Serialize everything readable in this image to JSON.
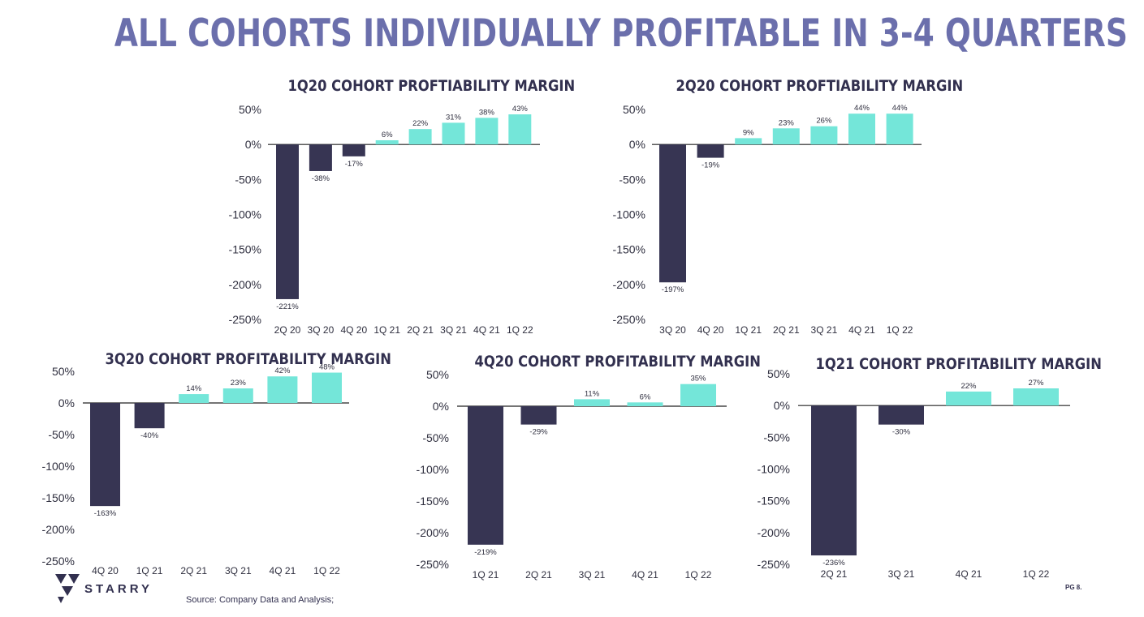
{
  "title": "ALL COHORTS INDIVIDUALLY PROFITABLE IN 3-4 QUARTERS",
  "colors": {
    "negative": "#373553",
    "positive": "#74e6d9",
    "title": "#6b6fac",
    "dark": "#32304f"
  },
  "footer": {
    "brand": "STARRY",
    "source": "Source: Company Data and Analysis;",
    "page": "PG 8."
  },
  "chart_data": [
    {
      "type": "bar",
      "title": "1Q20 COHORT PROFTIABILITY MARGIN",
      "categories": [
        "2Q 20",
        "3Q 20",
        "4Q 20",
        "1Q 21",
        "2Q 21",
        "3Q 21",
        "4Q 21",
        "1Q 22"
      ],
      "values": [
        -221,
        -38,
        -17,
        6,
        22,
        31,
        38,
        43
      ],
      "value_labels": [
        "-221%",
        "-38%",
        "-17%",
        "6%",
        "22%",
        "31%",
        "38%",
        "43%"
      ],
      "ylim": [
        -250,
        50
      ],
      "yticks": [
        50,
        0,
        -50,
        -100,
        -150,
        -200,
        -250
      ],
      "ytick_labels": [
        "50%",
        "0%",
        "-50%",
        "-100%",
        "-150%",
        "-200%",
        "-250%"
      ],
      "grid": false,
      "legend": "none"
    },
    {
      "type": "bar",
      "title": "2Q20 COHORT PROFTIABILITY MARGIN",
      "categories": [
        "3Q 20",
        "4Q 20",
        "1Q 21",
        "2Q 21",
        "3Q 21",
        "4Q 21",
        "1Q 22"
      ],
      "values": [
        -197,
        -19,
        9,
        23,
        26,
        44,
        44
      ],
      "value_labels": [
        "-197%",
        "-19%",
        "9%",
        "23%",
        "26%",
        "44%",
        "44%"
      ],
      "ylim": [
        -250,
        50
      ],
      "yticks": [
        50,
        0,
        -50,
        -100,
        -150,
        -200,
        -250
      ],
      "ytick_labels": [
        "50%",
        "0%",
        "-50%",
        "-100%",
        "-150%",
        "-200%",
        "-250%"
      ],
      "grid": false,
      "legend": "none"
    },
    {
      "type": "bar",
      "title": "3Q20 COHORT PROFITABILITY MARGIN",
      "categories": [
        "4Q 20",
        "1Q 21",
        "2Q 21",
        "3Q 21",
        "4Q 21",
        "1Q 22"
      ],
      "values": [
        -163,
        -40,
        14,
        23,
        42,
        48
      ],
      "value_labels": [
        "-163%",
        "-40%",
        "14%",
        "23%",
        "42%",
        "48%"
      ],
      "ylim": [
        -250,
        50
      ],
      "yticks": [
        50,
        0,
        -50,
        -100,
        -150,
        -200,
        -250
      ],
      "ytick_labels": [
        "50%",
        "0%",
        "-50%",
        "-100%",
        "-150%",
        "-200%",
        "-250%"
      ],
      "grid": false,
      "legend": "none"
    },
    {
      "type": "bar",
      "title": "4Q20 COHORT PROFITABILITY MARGIN",
      "categories": [
        "1Q 21",
        "2Q 21",
        "3Q 21",
        "4Q 21",
        "1Q 22"
      ],
      "values": [
        -219,
        -29,
        11,
        6,
        35
      ],
      "value_labels": [
        "-219%",
        "-29%",
        "11%",
        "6%",
        "35%"
      ],
      "ylim": [
        -250,
        50
      ],
      "yticks": [
        50,
        0,
        -50,
        -100,
        -150,
        -200,
        -250
      ],
      "ytick_labels": [
        "50%",
        "0%",
        "-50%",
        "-100%",
        "-150%",
        "-200%",
        "-250%"
      ],
      "grid": false,
      "legend": "none"
    },
    {
      "type": "bar",
      "title": "1Q21 COHORT PROFITABILITY MARGIN",
      "categories": [
        "2Q 21",
        "3Q 21",
        "4Q 21",
        "1Q 22"
      ],
      "values": [
        -236,
        -30,
        22,
        27
      ],
      "value_labels": [
        "-236%",
        "-30%",
        "22%",
        "27%"
      ],
      "ylim": [
        -250,
        50
      ],
      "yticks": [
        50,
        0,
        -50,
        -100,
        -150,
        -200,
        -250
      ],
      "ytick_labels": [
        "50%",
        "0%",
        "-50%",
        "-100%",
        "-150%",
        "-200%",
        "-250%"
      ],
      "grid": false,
      "legend": "none"
    }
  ]
}
